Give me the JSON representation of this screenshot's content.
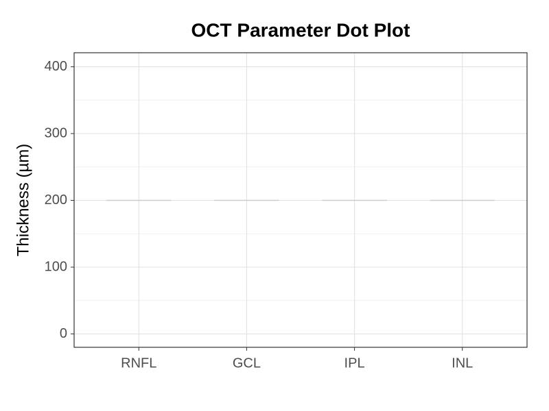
{
  "chart_data": {
    "type": "dot",
    "title": "OCT Parameter Dot Plot",
    "y_label": "Thickness (µm)",
    "categories": [
      "RNFL",
      "GCL",
      "IPL",
      "INL"
    ],
    "values": [
      200,
      200,
      200,
      200
    ],
    "color": "#cccccc",
    "ylim": [
      -20,
      421
    ],
    "yticks": [
      0,
      100,
      200,
      300,
      400
    ],
    "grid": true
  }
}
